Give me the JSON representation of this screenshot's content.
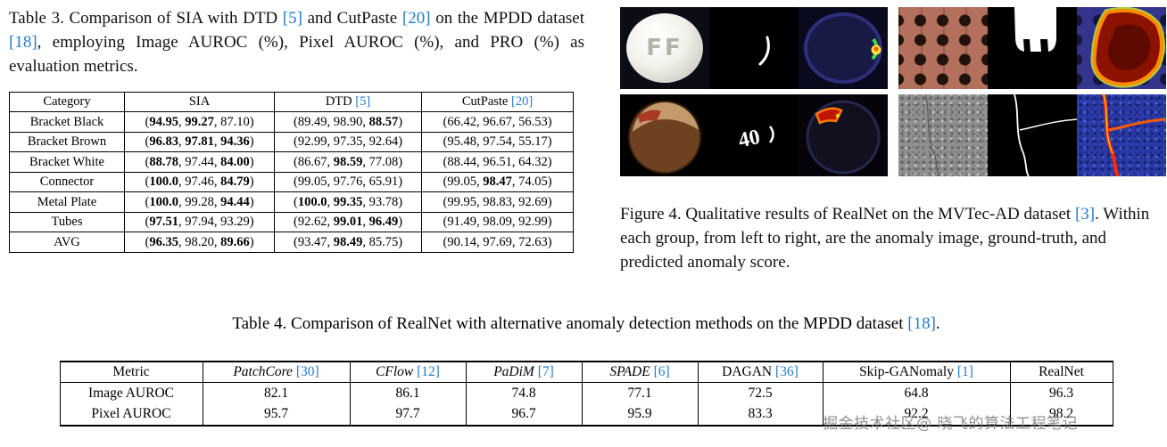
{
  "colors": {
    "cite": "#1f7bd0",
    "text": "#000000"
  },
  "table3_caption": [
    {
      "t": "Table 3.  Comparison of SIA with DTD "
    },
    {
      "t": "[5]",
      "c": true
    },
    {
      "t": " and CutPaste "
    },
    {
      "t": "[20]",
      "c": true
    },
    {
      "t": " on the MPDD dataset "
    },
    {
      "t": "[18]",
      "c": true
    },
    {
      "t": ", employing Image AUROC (%), Pixel AUROC (%), and PRO (%) as evaluation metrics."
    }
  ],
  "table3": {
    "headers": [
      {
        "label": "Category"
      },
      {
        "label": "SIA"
      },
      {
        "label": "DTD",
        "cite": "[5]"
      },
      {
        "label": "CutPaste",
        "cite": "[20]"
      }
    ],
    "rows": [
      {
        "category": "Bracket Black",
        "bold": false,
        "cells": [
          [
            [
              "94.95",
              1
            ],
            [
              "99.27",
              1
            ],
            [
              "87.10",
              0
            ]
          ],
          [
            [
              "89.49",
              0
            ],
            [
              "98.90",
              0
            ],
            [
              "88.57",
              1
            ]
          ],
          [
            [
              "66.42",
              0
            ],
            [
              "96.67",
              0
            ],
            [
              "56.53",
              0
            ]
          ]
        ]
      },
      {
        "category": "Bracket Brown",
        "bold": false,
        "cells": [
          [
            [
              "96.83",
              1
            ],
            [
              "97.81",
              1
            ],
            [
              "94.36",
              1
            ]
          ],
          [
            [
              "92.99",
              0
            ],
            [
              "97.35",
              0
            ],
            [
              "92.64",
              0
            ]
          ],
          [
            [
              "95.48",
              0
            ],
            [
              "97.54",
              0
            ],
            [
              "55.17",
              0
            ]
          ]
        ]
      },
      {
        "category": "Bracket White",
        "bold": false,
        "cells": [
          [
            [
              "88.78",
              1
            ],
            [
              "97.44",
              0
            ],
            [
              "84.00",
              1
            ]
          ],
          [
            [
              "86.67",
              0
            ],
            [
              "98.59",
              1
            ],
            [
              "77.08",
              0
            ]
          ],
          [
            [
              "88.44",
              0
            ],
            [
              "96.51",
              0
            ],
            [
              "64.32",
              0
            ]
          ]
        ]
      },
      {
        "category": "Connector",
        "bold": false,
        "cells": [
          [
            [
              "100.0",
              1
            ],
            [
              "97.46",
              0
            ],
            [
              "84.79",
              1
            ]
          ],
          [
            [
              "99.05",
              0
            ],
            [
              "97.76",
              0
            ],
            [
              "65.91",
              0
            ]
          ],
          [
            [
              "99.05",
              0
            ],
            [
              "98.47",
              1
            ],
            [
              "74.05",
              0
            ]
          ]
        ]
      },
      {
        "category": "Metal Plate",
        "bold": false,
        "cells": [
          [
            [
              "100.0",
              1
            ],
            [
              "99.28",
              0
            ],
            [
              "94.44",
              1
            ]
          ],
          [
            [
              "100.0",
              1
            ],
            [
              "99.35",
              1
            ],
            [
              "93.78",
              0
            ]
          ],
          [
            [
              "99.95",
              0
            ],
            [
              "98.83",
              0
            ],
            [
              "92.69",
              0
            ]
          ]
        ]
      },
      {
        "category": "Tubes",
        "bold": false,
        "cells": [
          [
            [
              "97.51",
              1
            ],
            [
              "97.94",
              0
            ],
            [
              "93.29",
              0
            ]
          ],
          [
            [
              "92.62",
              0
            ],
            [
              "99.01",
              1
            ],
            [
              "96.49",
              1
            ]
          ],
          [
            [
              "91.49",
              0
            ],
            [
              "98.09",
              0
            ],
            [
              "92.99",
              0
            ]
          ]
        ]
      },
      {
        "category": "AVG",
        "bold": true,
        "cells": [
          [
            [
              "96.35",
              1
            ],
            [
              "98.20",
              0
            ],
            [
              "89.66",
              1
            ]
          ],
          [
            [
              "93.47",
              0
            ],
            [
              "98.49",
              1
            ],
            [
              "85.75",
              0
            ]
          ],
          [
            [
              "90.14",
              0
            ],
            [
              "97.69",
              0
            ],
            [
              "72.63",
              0
            ]
          ]
        ]
      }
    ]
  },
  "figure4": {
    "pill_text": "FF",
    "scribble_text": "40",
    "images": [
      "pill-anomaly-image",
      "pill-ground-truth-mask",
      "pill-anomaly-heatmap",
      "pegboard-anomaly-image",
      "pegboard-ground-truth-mask",
      "pegboard-anomaly-heatmap",
      "hazelnut-anomaly-image",
      "hazelnut-ground-truth-mask",
      "hazelnut-anomaly-heatmap",
      "grid-anomaly-image",
      "grid-ground-truth-mask",
      "grid-anomaly-heatmap"
    ],
    "caption": [
      {
        "t": "Figure 4. Qualitative results of RealNet on the MVTec-AD dataset "
      },
      {
        "t": "[3]",
        "c": true
      },
      {
        "t": ". Within each group, from left to right, are the anomaly image, ground-truth, and predicted anomaly score."
      }
    ]
  },
  "table4_caption": [
    {
      "t": "Table 4. Comparison of RealNet with alternative anomaly detection methods on the MPDD dataset "
    },
    {
      "t": "[18]",
      "c": true
    },
    {
      "t": "."
    }
  ],
  "table4": {
    "headers": [
      {
        "label": "Metric",
        "italic": false
      },
      {
        "label": "PatchCore",
        "cite": "[30]",
        "italic": true
      },
      {
        "label": "CFlow",
        "cite": "[12]",
        "italic": true
      },
      {
        "label": "PaDiM",
        "cite": "[7]",
        "italic": true
      },
      {
        "label": "SPADE",
        "cite": "[6]",
        "italic": true
      },
      {
        "label": "DAGAN",
        "cite": "[36]",
        "italic": false
      },
      {
        "label": "Skip-GANomaly",
        "cite": "[1]",
        "italic": false
      },
      {
        "label": "RealNet",
        "italic": false
      }
    ],
    "rows": [
      {
        "metric": "Image AUROC",
        "cells": [
          [
            "82.1",
            0
          ],
          [
            "86.1",
            0
          ],
          [
            "74.8",
            0
          ],
          [
            "77.1",
            0
          ],
          [
            "72.5",
            0
          ],
          [
            "64.8",
            0
          ],
          [
            "96.3",
            1
          ]
        ]
      },
      {
        "metric": "Pixel AUROC",
        "cells": [
          [
            "95.7",
            0
          ],
          [
            "97.7",
            0
          ],
          [
            "96.7",
            0
          ],
          [
            "95.9",
            0
          ],
          [
            "83.3",
            0
          ],
          [
            "92.2",
            0
          ],
          [
            "98.2",
            1
          ]
        ]
      }
    ]
  },
  "watermark": "掘金技术社区@ 晓飞的算法工程笔记"
}
